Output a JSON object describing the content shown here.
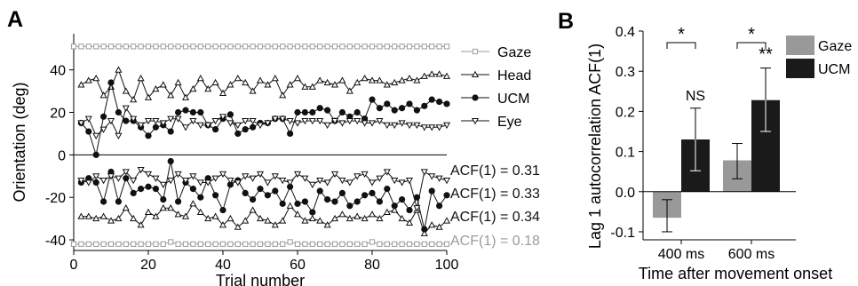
{
  "panels": {
    "a": {
      "letter": "A"
    },
    "b": {
      "letter": "B"
    }
  },
  "chart_data": [
    {
      "type": "line",
      "panel": "A",
      "xlabel": "Trial number",
      "ylabel": "Orientation (deg)",
      "xlim": [
        0,
        100
      ],
      "ylim": [
        -45,
        57
      ],
      "xticks": [
        0,
        20,
        40,
        60,
        80,
        100
      ],
      "yticks": [
        -40,
        -20,
        0,
        20,
        40
      ],
      "zero_line": true,
      "legend": {
        "placement": "right",
        "entries": [
          "Gaze",
          "Head",
          "UCM",
          "Eye"
        ]
      },
      "colors": {
        "gaze": "#9b9b9b",
        "data": "#111111"
      },
      "series": [
        {
          "name": "Gaze",
          "marker": "square-open",
          "color": "#9b9b9b",
          "x": [
            0,
            2,
            4,
            6,
            8,
            10,
            12,
            14,
            16,
            18,
            20,
            22,
            24,
            26,
            28,
            30,
            32,
            34,
            36,
            38,
            40,
            42,
            44,
            46,
            48,
            50,
            52,
            54,
            56,
            58,
            60,
            62,
            64,
            66,
            68,
            70,
            72,
            74,
            76,
            78,
            80,
            82,
            84,
            86,
            88,
            90,
            92,
            94,
            96,
            98,
            100
          ],
          "values": [
            51,
            51,
            51,
            51,
            51,
            51,
            51,
            51,
            51,
            51,
            51,
            51,
            51,
            51,
            51,
            51,
            51,
            51,
            51,
            51,
            51,
            51,
            51,
            51,
            51,
            51,
            51,
            51,
            51,
            51,
            51,
            51,
            51,
            51,
            51,
            51,
            51,
            51,
            51,
            51,
            51,
            51,
            51,
            51,
            51,
            51,
            51,
            51,
            51,
            51,
            51
          ]
        },
        {
          "name": "Head",
          "marker": "triangle-up-open",
          "color": "#111111",
          "x": [
            2,
            4,
            6,
            8,
            10,
            12,
            14,
            16,
            18,
            20,
            22,
            24,
            26,
            28,
            30,
            32,
            34,
            36,
            38,
            40,
            42,
            44,
            46,
            48,
            50,
            52,
            54,
            56,
            58,
            60,
            62,
            64,
            66,
            68,
            70,
            72,
            74,
            76,
            78,
            80,
            82,
            84,
            86,
            88,
            90,
            92,
            94,
            96,
            98,
            100
          ],
          "values": [
            33,
            35,
            36,
            28,
            32,
            40,
            30,
            26,
            36,
            27,
            31,
            33,
            28,
            34,
            27,
            31,
            36,
            31,
            34,
            29,
            33,
            36,
            34,
            30,
            35,
            33,
            36,
            28,
            33,
            36,
            32,
            32,
            35,
            34,
            33,
            35,
            30,
            34,
            36,
            35,
            35,
            33,
            34,
            35,
            36,
            35,
            37,
            38,
            38,
            37
          ]
        },
        {
          "name": "UCM",
          "marker": "circle-filled",
          "color": "#111111",
          "x": [
            2,
            4,
            6,
            8,
            10,
            12,
            14,
            16,
            18,
            20,
            22,
            24,
            26,
            28,
            30,
            32,
            34,
            36,
            38,
            40,
            42,
            44,
            46,
            48,
            50,
            52,
            54,
            56,
            58,
            60,
            62,
            64,
            66,
            68,
            70,
            72,
            74,
            76,
            78,
            80,
            82,
            84,
            86,
            88,
            90,
            92,
            94,
            96,
            98,
            100
          ],
          "values": [
            15,
            11,
            0,
            18,
            34,
            20,
            16,
            16,
            13,
            9,
            13,
            14,
            11,
            20,
            21,
            20,
            20,
            14,
            12,
            17,
            19,
            10,
            12,
            13,
            15,
            15,
            17,
            17,
            10,
            20,
            20,
            20,
            22,
            21,
            16,
            20,
            18,
            20,
            17,
            26,
            22,
            24,
            21,
            22,
            24,
            21,
            23,
            26,
            25,
            24
          ]
        },
        {
          "name": "Eye",
          "marker": "triangle-down-open",
          "color": "#111111",
          "x": [
            2,
            4,
            6,
            8,
            10,
            12,
            14,
            16,
            18,
            20,
            22,
            24,
            26,
            28,
            30,
            32,
            34,
            36,
            38,
            40,
            42,
            44,
            46,
            48,
            50,
            52,
            54,
            56,
            58,
            60,
            62,
            64,
            66,
            68,
            70,
            72,
            74,
            76,
            78,
            80,
            82,
            84,
            86,
            88,
            90,
            92,
            94,
            96,
            98,
            100
          ],
          "values": [
            15,
            17,
            9,
            12,
            16,
            9,
            22,
            17,
            14,
            16,
            16,
            15,
            17,
            17,
            13,
            16,
            14,
            14,
            16,
            18,
            15,
            14,
            16,
            16,
            14,
            15,
            17,
            17,
            16,
            15,
            16,
            16,
            16,
            14,
            16,
            15,
            16,
            16,
            15,
            15,
            16,
            14,
            14,
            15,
            14,
            14,
            13,
            13,
            13,
            14
          ]
        },
        {
          "name": "Head (ACF)",
          "marker": "triangle-up-open",
          "color": "#111111",
          "x": [
            2,
            4,
            6,
            8,
            10,
            12,
            14,
            16,
            18,
            20,
            22,
            24,
            26,
            28,
            30,
            32,
            34,
            36,
            38,
            40,
            42,
            44,
            46,
            48,
            50,
            52,
            54,
            56,
            58,
            60,
            62,
            64,
            66,
            68,
            70,
            72,
            74,
            76,
            78,
            80,
            82,
            84,
            86,
            88,
            90,
            92,
            94,
            96,
            98,
            100
          ],
          "values": [
            -29,
            -29,
            -30,
            -29,
            -31,
            -30,
            -25,
            -30,
            -33,
            -27,
            -29,
            -25,
            -25,
            -28,
            -29,
            -23,
            -27,
            -30,
            -29,
            -33,
            -30,
            -34,
            -31,
            -26,
            -30,
            -31,
            -33,
            -31,
            -24,
            -28,
            -31,
            -30,
            -31,
            -33,
            -30,
            -28,
            -30,
            -29,
            -30,
            -28,
            -30,
            -27,
            -26,
            -30,
            -32,
            -26,
            -37,
            -33,
            -34,
            -31
          ]
        },
        {
          "name": "UCM (ACF)",
          "marker": "circle-filled",
          "color": "#111111",
          "x": [
            2,
            4,
            6,
            8,
            10,
            12,
            14,
            16,
            18,
            20,
            22,
            24,
            26,
            28,
            30,
            32,
            34,
            36,
            38,
            40,
            42,
            44,
            46,
            48,
            50,
            52,
            54,
            56,
            58,
            60,
            62,
            64,
            66,
            68,
            70,
            72,
            74,
            76,
            78,
            80,
            82,
            84,
            86,
            88,
            90,
            92,
            94,
            96,
            98,
            100
          ],
          "values": [
            -13,
            -11,
            -13,
            -22,
            -8,
            -22,
            -11,
            -18,
            -16,
            -15,
            -16,
            -21,
            -3,
            -22,
            -13,
            -16,
            -20,
            -11,
            -19,
            -26,
            -14,
            -12,
            -18,
            -21,
            -16,
            -19,
            -17,
            -23,
            -15,
            -23,
            -22,
            -27,
            -17,
            -21,
            -22,
            -18,
            -24,
            -22,
            -19,
            -18,
            -22,
            -16,
            -24,
            -21,
            -26,
            -20,
            -35,
            -17,
            -24,
            -19
          ]
        },
        {
          "name": "Eye (ACF)",
          "marker": "triangle-down-open",
          "color": "#111111",
          "x": [
            2,
            4,
            6,
            8,
            10,
            12,
            14,
            16,
            18,
            20,
            22,
            24,
            26,
            28,
            30,
            32,
            34,
            36,
            38,
            40,
            42,
            44,
            46,
            48,
            50,
            52,
            54,
            56,
            58,
            60,
            62,
            64,
            66,
            68,
            70,
            72,
            74,
            76,
            78,
            80,
            82,
            84,
            86,
            88,
            90,
            92,
            94,
            96,
            98,
            100
          ],
          "values": [
            -12,
            -13,
            -10,
            -12,
            -10,
            -11,
            -8,
            -12,
            -7,
            -9,
            -11,
            -14,
            -12,
            -9,
            -12,
            -10,
            -13,
            -13,
            -11,
            -9,
            -12,
            -13,
            -10,
            -11,
            -9,
            -13,
            -10,
            -12,
            -13,
            -9,
            -11,
            -14,
            -12,
            -13,
            -9,
            -12,
            -13,
            -10,
            -9,
            -13,
            -11,
            -8,
            -12,
            -13,
            -12,
            -25,
            -8,
            -10,
            -11,
            -12
          ]
        },
        {
          "name": "Gaze (ACF)",
          "marker": "square-open",
          "color": "#9b9b9b",
          "x": [
            0,
            2,
            4,
            6,
            8,
            10,
            12,
            14,
            16,
            18,
            20,
            22,
            24,
            26,
            28,
            30,
            32,
            34,
            36,
            38,
            40,
            42,
            44,
            46,
            48,
            50,
            52,
            54,
            56,
            58,
            60,
            62,
            64,
            66,
            68,
            70,
            72,
            74,
            76,
            78,
            80,
            82,
            84,
            86,
            88,
            90,
            92,
            94,
            96,
            98,
            100
          ],
          "values": [
            -42,
            -42,
            -42,
            -42,
            -42,
            -42,
            -42,
            -42,
            -42,
            -42,
            -42,
            -42,
            -42,
            -41,
            -42,
            -42,
            -42,
            -42,
            -42,
            -42,
            -42,
            -42,
            -42,
            -42,
            -42,
            -42,
            -42,
            -42,
            -42,
            -41,
            -42,
            -42,
            -42,
            -42,
            -42,
            -42,
            -42,
            -42,
            -42,
            -42,
            -41,
            -42,
            -42,
            -42,
            -42,
            -42,
            -42,
            -42,
            -42,
            -42,
            -42
          ]
        }
      ],
      "annotations": [
        {
          "text": "ACF(1) = 0.31",
          "series": "Eye (ACF)",
          "y": -11,
          "color": "#111111"
        },
        {
          "text": "ACF(1) = 0.33",
          "series": "UCM (ACF)",
          "y": -20,
          "color": "#111111"
        },
        {
          "text": "ACF(1) = 0.34",
          "series": "Head (ACF)",
          "y": -31,
          "color": "#111111"
        },
        {
          "text": "ACF(1) = 0.18",
          "series": "Gaze (ACF)",
          "y": -42,
          "color": "#9b9b9b"
        }
      ]
    },
    {
      "type": "bar",
      "panel": "B",
      "xlabel": "Time after movement onset",
      "ylabel": "Lag 1 autocorrelation ACF(1)",
      "categories": [
        "400 ms",
        "600 ms"
      ],
      "ylim": [
        -0.12,
        0.4
      ],
      "yticks": [
        "-0.1",
        "0.0",
        "0.1",
        "0.2",
        "0.3",
        "0.4"
      ],
      "ytick_values": [
        -0.1,
        0.0,
        0.1,
        0.2,
        0.3,
        0.4
      ],
      "legend": {
        "placement": "top-right",
        "entries": [
          "Gaze",
          "UCM"
        ]
      },
      "series": [
        {
          "name": "Gaze",
          "color": "#999999",
          "values": [
            -0.065,
            0.078
          ],
          "error": [
            [
              -0.1,
              -0.02
            ],
            [
              0.032,
              0.12
            ]
          ]
        },
        {
          "name": "UCM",
          "color": "#1a1a1a",
          "values": [
            0.13,
            0.228
          ],
          "error": [
            [
              0.052,
              0.208
            ],
            [
              0.15,
              0.308
            ]
          ]
        }
      ],
      "significance": [
        {
          "category": "400 ms",
          "bracket": "*",
          "label": "NS"
        },
        {
          "category": "600 ms",
          "bracket": "*",
          "label": "**"
        }
      ]
    }
  ]
}
